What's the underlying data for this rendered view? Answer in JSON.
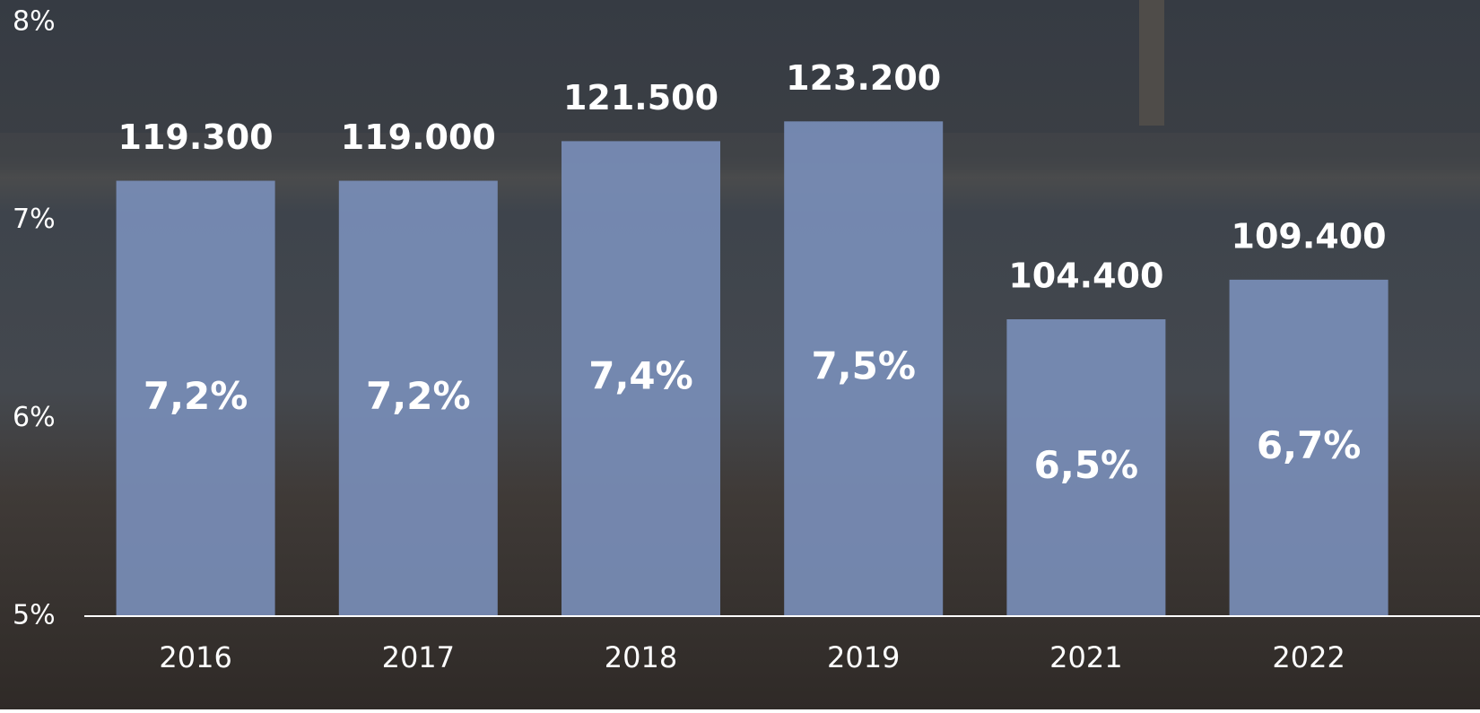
{
  "chart_data": {
    "type": "bar",
    "categories": [
      "2016",
      "2017",
      "2018",
      "2019",
      "2021",
      "2022"
    ],
    "values": [
      7.2,
      7.2,
      7.4,
      7.5,
      6.5,
      6.7
    ],
    "value_labels": [
      "7,2%",
      "7,2%",
      "7,4%",
      "7,5%",
      "6,5%",
      "6,7%"
    ],
    "top_values": [
      119300,
      119000,
      121500,
      123200,
      104400,
      109400
    ],
    "top_value_labels": [
      "119.300",
      "119.000",
      "121.500",
      "123.200",
      "104.400",
      "109.400"
    ],
    "color": "#7a8fba",
    "ylim": [
      5,
      8
    ],
    "yticks": [
      {
        "value": 5,
        "label": "5%"
      },
      {
        "value": 6,
        "label": "6%"
      },
      {
        "value": 7,
        "label": "7%"
      },
      {
        "value": 8,
        "label": "8%"
      }
    ],
    "grid": false
  }
}
